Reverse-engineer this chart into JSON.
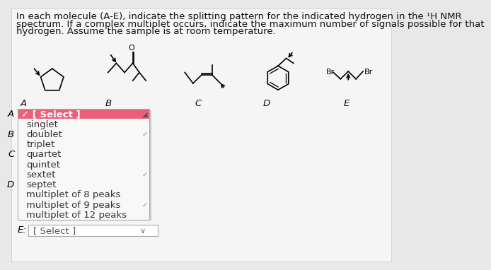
{
  "bg_color": "#e8e8e8",
  "page_color": "#f5f5f5",
  "title_line1": "In each molecule (A-E), indicate the splitting pattern for the indicated hydrogen in the ¹H NMR",
  "title_line2": "spectrum. If a complex multiplet occurs, indicate the maximum number of signals possible for that",
  "title_line3": "hydrogen. Assume the sample is at room temperature.",
  "title_fontsize": 9.5,
  "title_color": "#111111",
  "mol_label_fontsize": 9.5,
  "mol_label_color": "#111111",
  "dropdown_header_text": "✓ [ Select ]",
  "dropdown_header_bg": "#e8607a",
  "dropdown_header_color": "white",
  "dropdown_items": [
    "singlet",
    "doublet",
    "triplet",
    "quartet",
    "quintet",
    "sextet",
    "septet",
    "multiplet of 8 peaks",
    "multiplet of 9 peaks",
    "multiplet of 12 peaks"
  ],
  "dropdown_bg": "#f8f8f8",
  "dropdown_text_color": "#333333",
  "side_labels": [
    "A",
    "B",
    "C",
    "D"
  ],
  "side_label_rows": [
    0,
    2,
    4,
    7
  ],
  "bottom_label": "E:",
  "bottom_select_text": "[ Select ]",
  "fig_width": 7.0,
  "fig_height": 4.71
}
